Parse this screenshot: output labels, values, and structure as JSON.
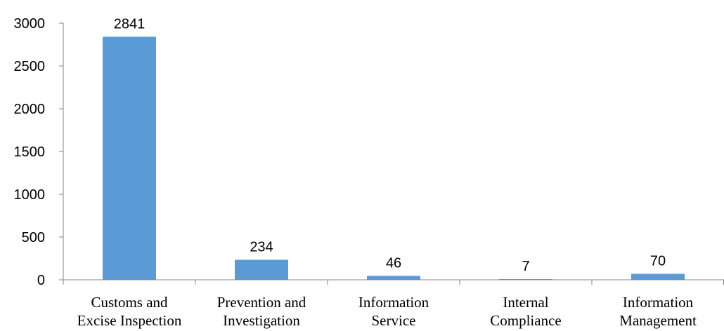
{
  "chart_data": {
    "type": "bar",
    "title": "",
    "xlabel": "",
    "ylabel": "",
    "categories": [
      [
        "Customs and",
        "Excise Inspection"
      ],
      [
        "Prevention and",
        "Investigation"
      ],
      [
        "Information",
        "Service"
      ],
      [
        "Internal",
        "Compliance"
      ],
      [
        "Information",
        "Management"
      ]
    ],
    "values": [
      2841,
      234,
      46,
      7,
      70
    ],
    "data_labels": [
      "2841",
      "234",
      "46",
      "7",
      "70"
    ],
    "ylim": [
      0,
      3000
    ],
    "yticks": [
      0,
      500,
      1000,
      1500,
      2000,
      2500,
      3000
    ],
    "grid": false,
    "legend": "none",
    "bar_color": "#5B9BD5"
  }
}
